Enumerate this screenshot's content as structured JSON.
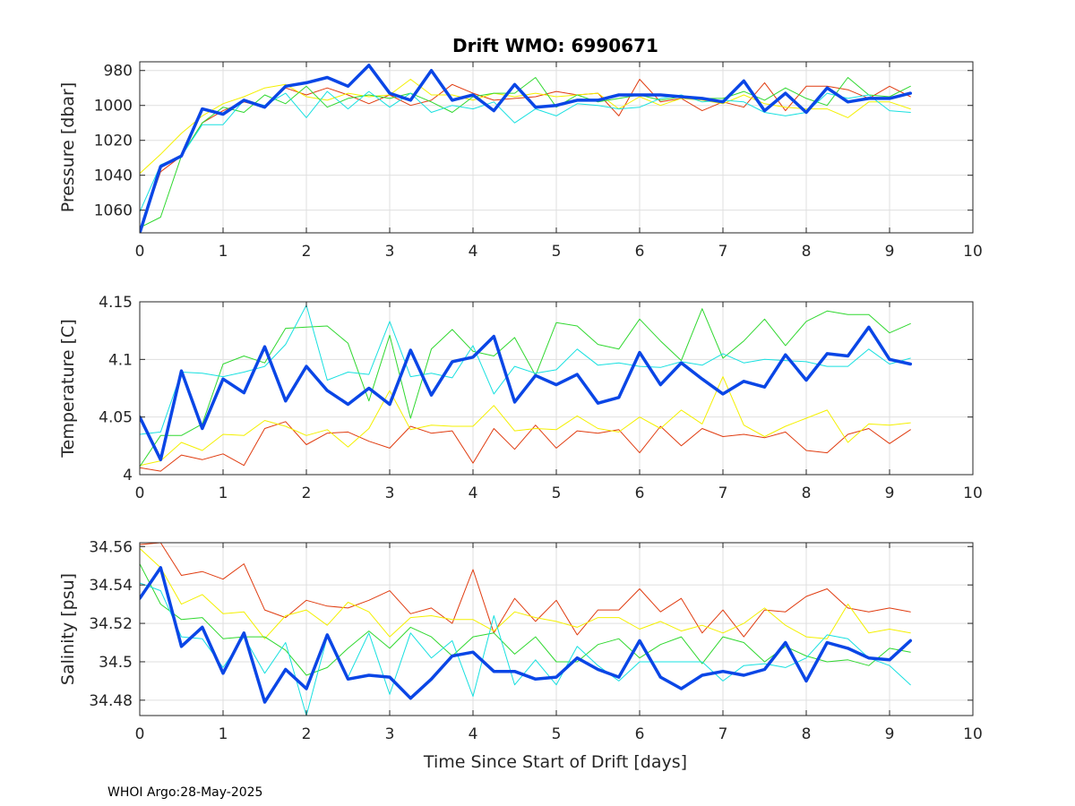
{
  "figure": {
    "title": "Drift WMO: 6990671",
    "footer": "WHOI Argo:28-May-2025",
    "xlabel": "Time Since Start of Drift [days]"
  },
  "chart_data": [
    {
      "type": "line",
      "ylabel": "Pressure [dbar]",
      "y_reversed": true,
      "xlim": [
        0,
        10
      ],
      "ylim": [
        975,
        1073
      ],
      "xticks": [
        0,
        1,
        2,
        3,
        4,
        5,
        6,
        7,
        8,
        9,
        10
      ],
      "yticks": [
        980,
        1000,
        1020,
        1040,
        1060
      ],
      "ytick_labels": [
        "980",
        "1000",
        "1020",
        "1040",
        "1060"
      ],
      "grid": true,
      "x": [
        0,
        0.25,
        0.5,
        0.75,
        1,
        1.25,
        1.5,
        1.75,
        2,
        2.25,
        2.5,
        2.75,
        3,
        3.25,
        3.5,
        3.75,
        4,
        4.25,
        4.5,
        4.75,
        5,
        5.25,
        5.5,
        5.75,
        6,
        6.25,
        6.5,
        6.75,
        7,
        7.25,
        7.5,
        7.75,
        8,
        8.25,
        8.5,
        8.75,
        9,
        9.25
      ],
      "series": [
        {
          "color": "#e03c10",
          "width": 1,
          "values": [
            1072,
            1038,
            1029,
            1010,
            1003,
            998,
            1001,
            990,
            994,
            990,
            994,
            999,
            994,
            1000,
            997,
            988,
            993,
            997,
            996,
            995,
            992,
            994,
            993,
            1006,
            985,
            998,
            996,
            1003,
            998,
            1001,
            987,
            1003,
            989,
            989,
            991,
            996,
            989,
            995
          ]
        },
        {
          "color": "#f4f000",
          "width": 1,
          "values": [
            1039,
            1028,
            1016,
            1006,
            999,
            995,
            990,
            988,
            995,
            997,
            993,
            995,
            994,
            985,
            994,
            994,
            997,
            993,
            995,
            993,
            995,
            994,
            993,
            1002,
            995,
            1000,
            996,
            997,
            999,
            994,
            999,
            1001,
            1002,
            1002,
            1007,
            998,
            998,
            1002
          ]
        },
        {
          "color": "#30d830",
          "width": 1,
          "values": [
            1070,
            1064,
            1029,
            1010,
            1001,
            1004,
            994,
            999,
            989,
            1001,
            996,
            994,
            996,
            993,
            998,
            1004,
            995,
            993,
            993,
            984,
            1001,
            994,
            998,
            996,
            994,
            997,
            995,
            996,
            996,
            992,
            997,
            990,
            996,
            1000,
            984,
            994,
            995,
            989
          ]
        },
        {
          "color": "#18e0e0",
          "width": 1,
          "values": [
            1061,
            1034,
            1029,
            1011,
            1011,
            997,
            1000,
            993,
            1007,
            992,
            1002,
            992,
            1001,
            993,
            1004,
            1000,
            1002,
            998,
            1010,
            1002,
            1006,
            999,
            1000,
            1002,
            1001,
            996,
            994,
            998,
            997,
            998,
            1004,
            1006,
            1004,
            993,
            996,
            994,
            1003,
            1004
          ]
        },
        {
          "color": "#0a46e6",
          "width": 3.5,
          "values": [
            1073,
            1035,
            1029,
            1002,
            1005,
            997,
            1001,
            989,
            987,
            984,
            989,
            977,
            993,
            997,
            980,
            997,
            994,
            1003,
            988,
            1001,
            1000,
            997,
            997,
            994,
            994,
            994,
            995,
            996,
            998,
            986,
            1003,
            993,
            1004,
            990,
            998,
            996,
            996,
            993
          ]
        }
      ]
    },
    {
      "type": "line",
      "ylabel": "Temperature [C]",
      "xlim": [
        0,
        10
      ],
      "ylim": [
        4.0,
        4.15
      ],
      "xticks": [
        0,
        1,
        2,
        3,
        4,
        5,
        6,
        7,
        8,
        9,
        10
      ],
      "yticks": [
        4.0,
        4.05,
        4.1,
        4.15
      ],
      "ytick_labels": [
        "4",
        "4.05",
        "4.1",
        "4.15"
      ],
      "grid": true,
      "x": [
        0,
        0.25,
        0.5,
        0.75,
        1,
        1.25,
        1.5,
        1.75,
        2,
        2.25,
        2.5,
        2.75,
        3,
        3.25,
        3.5,
        3.75,
        4,
        4.25,
        4.5,
        4.75,
        5,
        5.25,
        5.5,
        5.75,
        6,
        6.25,
        6.5,
        6.75,
        7,
        7.25,
        7.5,
        7.75,
        8,
        8.25,
        8.5,
        8.75,
        9,
        9.25
      ],
      "series": [
        {
          "color": "#e03c10",
          "width": 1,
          "values": [
            4.006,
            4.003,
            4.017,
            4.013,
            4.018,
            4.008,
            4.04,
            4.046,
            4.026,
            4.036,
            4.037,
            4.029,
            4.023,
            4.042,
            4.036,
            4.038,
            4.01,
            4.04,
            4.022,
            4.043,
            4.023,
            4.038,
            4.036,
            4.039,
            4.019,
            4.042,
            4.025,
            4.04,
            4.033,
            4.035,
            4.032,
            4.037,
            4.021,
            4.019,
            4.035,
            4.04,
            4.027,
            4.039
          ]
        },
        {
          "color": "#f4f000",
          "width": 1,
          "values": [
            4.008,
            4.012,
            4.028,
            4.021,
            4.035,
            4.034,
            4.047,
            4.042,
            4.034,
            4.039,
            4.024,
            4.04,
            4.073,
            4.039,
            4.043,
            4.042,
            4.042,
            4.06,
            4.038,
            4.04,
            4.039,
            4.051,
            4.04,
            4.037,
            4.05,
            4.04,
            4.056,
            4.044,
            4.085,
            4.043,
            4.033,
            4.042,
            4.049,
            4.056,
            4.028,
            4.044,
            4.043,
            4.045
          ]
        },
        {
          "color": "#30d830",
          "width": 1,
          "values": [
            4.007,
            4.034,
            4.034,
            4.044,
            4.096,
            4.103,
            4.097,
            4.127,
            4.128,
            4.129,
            4.114,
            4.064,
            4.121,
            4.049,
            4.109,
            4.126,
            4.107,
            4.103,
            4.119,
            4.086,
            4.132,
            4.129,
            4.113,
            4.109,
            4.135,
            4.116,
            4.099,
            4.144,
            4.101,
            4.116,
            4.135,
            4.112,
            4.133,
            4.142,
            4.139,
            4.139,
            4.123,
            4.131
          ]
        },
        {
          "color": "#18e0e0",
          "width": 1,
          "values": [
            4.035,
            4.037,
            4.089,
            4.088,
            4.085,
            4.089,
            4.094,
            4.113,
            4.147,
            4.082,
            4.089,
            4.087,
            4.133,
            4.085,
            4.088,
            4.084,
            4.112,
            4.07,
            4.094,
            4.088,
            4.091,
            4.109,
            4.095,
            4.097,
            4.094,
            4.093,
            4.098,
            4.095,
            4.105,
            4.097,
            4.1,
            4.099,
            4.098,
            4.094,
            4.094,
            4.109,
            4.096,
            4.101
          ]
        },
        {
          "color": "#0a46e6",
          "width": 3.5,
          "values": [
            4.05,
            4.013,
            4.09,
            4.04,
            4.083,
            4.071,
            4.111,
            4.064,
            4.094,
            4.073,
            4.061,
            4.075,
            4.061,
            4.108,
            4.069,
            4.098,
            4.102,
            4.12,
            4.063,
            4.086,
            4.078,
            4.087,
            4.062,
            4.067,
            4.106,
            4.078,
            4.097,
            4.083,
            4.07,
            4.081,
            4.076,
            4.104,
            4.082,
            4.105,
            4.103,
            4.128,
            4.1,
            4.096
          ]
        }
      ]
    },
    {
      "type": "line",
      "ylabel": "Salinity [psu]",
      "xlim": [
        0,
        10
      ],
      "ylim": [
        34.472,
        34.562
      ],
      "xticks": [
        0,
        1,
        2,
        3,
        4,
        5,
        6,
        7,
        8,
        9,
        10
      ],
      "yticks": [
        34.48,
        34.5,
        34.52,
        34.54,
        34.56
      ],
      "ytick_labels": [
        "34.48",
        "34.5",
        "34.52",
        "34.54",
        "34.56"
      ],
      "grid": true,
      "x": [
        0,
        0.25,
        0.5,
        0.75,
        1,
        1.25,
        1.5,
        1.75,
        2,
        2.25,
        2.5,
        2.75,
        3,
        3.25,
        3.5,
        3.75,
        4,
        4.25,
        4.5,
        4.75,
        5,
        5.25,
        5.5,
        5.75,
        6,
        6.25,
        6.5,
        6.75,
        7,
        7.25,
        7.5,
        7.75,
        8,
        8.25,
        8.5,
        8.75,
        9,
        9.25
      ],
      "series": [
        {
          "color": "#e03c10",
          "width": 1,
          "values": [
            34.561,
            34.562,
            34.545,
            34.547,
            34.543,
            34.551,
            34.527,
            34.523,
            34.532,
            34.529,
            34.528,
            34.532,
            34.537,
            34.525,
            34.528,
            34.52,
            34.548,
            34.515,
            34.533,
            34.521,
            34.532,
            34.514,
            34.527,
            34.527,
            34.538,
            34.526,
            34.533,
            34.515,
            34.527,
            34.513,
            34.527,
            34.526,
            34.534,
            34.538,
            34.528,
            34.526,
            34.528,
            34.526
          ]
        },
        {
          "color": "#f4f000",
          "width": 1,
          "values": [
            34.559,
            34.549,
            34.53,
            34.535,
            34.525,
            34.526,
            34.512,
            34.524,
            34.527,
            34.519,
            34.531,
            34.526,
            34.513,
            34.523,
            34.524,
            34.522,
            34.522,
            34.516,
            34.526,
            34.523,
            34.521,
            34.518,
            34.523,
            34.523,
            34.517,
            34.521,
            34.516,
            34.519,
            34.515,
            34.52,
            34.528,
            34.519,
            34.513,
            34.512,
            34.53,
            34.515,
            34.517,
            34.515
          ]
        },
        {
          "color": "#30d830",
          "width": 1,
          "values": [
            34.551,
            34.53,
            34.522,
            34.523,
            34.512,
            34.513,
            34.513,
            34.506,
            34.493,
            34.497,
            34.507,
            34.516,
            34.507,
            34.518,
            34.513,
            34.503,
            34.513,
            34.515,
            34.504,
            34.513,
            34.5,
            34.5,
            34.509,
            34.512,
            34.502,
            34.509,
            34.513,
            34.499,
            34.513,
            34.51,
            34.5,
            34.508,
            34.503,
            34.5,
            34.501,
            34.498,
            34.507,
            34.505
          ]
        },
        {
          "color": "#18e0e0",
          "width": 1,
          "values": [
            34.541,
            34.537,
            34.513,
            34.512,
            34.497,
            34.513,
            34.494,
            34.51,
            34.472,
            34.513,
            34.492,
            34.515,
            34.483,
            34.515,
            34.502,
            34.511,
            34.482,
            34.524,
            34.488,
            34.501,
            34.488,
            34.508,
            34.498,
            34.49,
            34.5,
            34.5,
            34.5,
            34.5,
            34.49,
            34.498,
            34.499,
            34.497,
            34.502,
            34.514,
            34.512,
            34.502,
            34.498,
            34.488
          ]
        },
        {
          "color": "#0a46e6",
          "width": 3.5,
          "values": [
            34.533,
            34.549,
            34.508,
            34.518,
            34.494,
            34.515,
            34.479,
            34.496,
            34.486,
            34.514,
            34.491,
            34.493,
            34.492,
            34.481,
            34.491,
            34.503,
            34.505,
            34.495,
            34.495,
            34.491,
            34.492,
            34.502,
            34.496,
            34.492,
            34.511,
            34.492,
            34.486,
            34.493,
            34.495,
            34.493,
            34.496,
            34.51,
            34.49,
            34.51,
            34.507,
            34.502,
            34.501,
            34.511
          ]
        }
      ]
    }
  ]
}
